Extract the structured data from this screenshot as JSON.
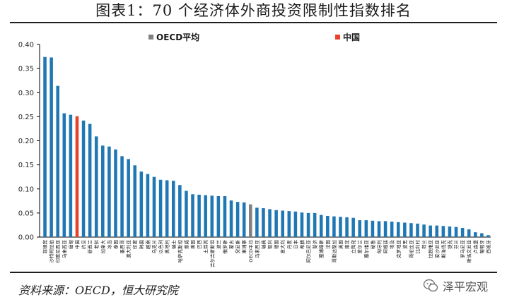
{
  "title": "图表1：70 个经济体外商投资限制性指数排名",
  "source": "资料来源：OECD，恒大研究院",
  "brand": "泽平宏观",
  "colors": {
    "bar": "#1f77b4",
    "avg": "#808080",
    "china": "#e8412c"
  },
  "chart_data": {
    "type": "bar",
    "legend": [
      {
        "label": "OECD平均",
        "color": "#808080"
      },
      {
        "label": "中国",
        "color": "#e8412c"
      }
    ],
    "legend_position": "top-center",
    "ylim": [
      0,
      0.4
    ],
    "yticks": [
      "0.00",
      "0.05",
      "0.10",
      "0.15",
      "0.20",
      "0.25",
      "0.30",
      "0.35",
      "0.40"
    ],
    "grid": false,
    "categories": [
      "菲律宾",
      "沙特阿拉伯",
      "印度尼西亚",
      "马来西亚",
      "缅甸",
      "中国",
      "约旦",
      "新西兰",
      "老挝",
      "加拿大",
      "冰岛",
      "泰国",
      "墨西哥",
      "澳大利亚",
      "印度",
      "韩国",
      "越南",
      "乌克兰",
      "以色列",
      "奥地利",
      "瑞士",
      "哈萨克斯坦",
      "挪威",
      "美国",
      "巴西",
      "土耳其",
      "吉尔吉斯斯坦",
      "波兰",
      "俄罗斯",
      "蒙古",
      "突尼斯",
      "柬埔寨",
      "OECD平均",
      "马来西亚",
      "瑞典",
      "智利",
      "德国",
      "意大利",
      "丹麦",
      "日本",
      "希腊",
      "阿尔巴尼亚",
      "斐济",
      "塞浦路斯",
      "法国",
      "哥斯达黎加",
      "英国",
      "南非",
      "立陶宛",
      "爱尔兰",
      "塞尔维亚",
      "秘鲁",
      "匈牙利",
      "阿根廷",
      "埃及",
      "克罗地亚",
      "波黑",
      "哥伦比亚",
      "比利时",
      "荷兰",
      "拉脱维亚",
      "爱沙尼亚",
      "斯洛伐克",
      "捷克",
      "芬兰",
      "罗马尼亚",
      "斯洛文尼亚",
      "卢森堡",
      "葡萄牙",
      "西班牙"
    ],
    "values": [
      0.374,
      0.373,
      0.314,
      0.257,
      0.254,
      0.251,
      0.242,
      0.235,
      0.209,
      0.19,
      0.188,
      0.182,
      0.168,
      0.162,
      0.149,
      0.136,
      0.131,
      0.125,
      0.119,
      0.118,
      0.117,
      0.108,
      0.096,
      0.089,
      0.088,
      0.087,
      0.086,
      0.085,
      0.085,
      0.076,
      0.073,
      0.072,
      0.068,
      0.061,
      0.06,
      0.058,
      0.056,
      0.055,
      0.054,
      0.053,
      0.051,
      0.05,
      0.05,
      0.046,
      0.044,
      0.043,
      0.042,
      0.041,
      0.04,
      0.035,
      0.035,
      0.034,
      0.033,
      0.033,
      0.032,
      0.031,
      0.03,
      0.029,
      0.028,
      0.026,
      0.024,
      0.024,
      0.023,
      0.022,
      0.021,
      0.019,
      0.016,
      0.01,
      0.008,
      0.004
    ],
    "highlight": {
      "OECD平均": "#808080",
      "中国": "#e8412c"
    }
  }
}
